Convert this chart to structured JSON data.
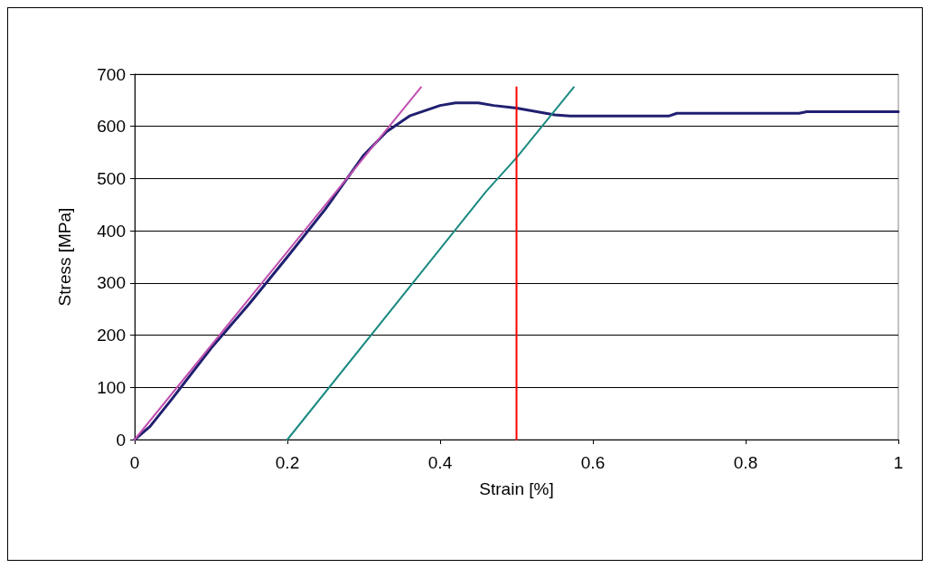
{
  "chart_data": {
    "type": "line",
    "xlabel": "Strain [%]",
    "ylabel": "Stress [MPa]",
    "xlim": [
      0,
      1
    ],
    "xticks": [
      0,
      0.2,
      0.4,
      0.6,
      0.8,
      1
    ],
    "ylim": [
      0,
      700
    ],
    "yticks": [
      0,
      100,
      200,
      300,
      400,
      500,
      600,
      700
    ],
    "grid": "y",
    "marker": "none",
    "line_style": "solid",
    "series": [
      {
        "color": "#201f70",
        "x": [
          0,
          0.02,
          0.05,
          0.1,
          0.15,
          0.2,
          0.25,
          0.3,
          0.33,
          0.36,
          0.38,
          0.4,
          0.42,
          0.45,
          0.47,
          0.5,
          0.52,
          0.55,
          0.57,
          0.7,
          0.71,
          0.87,
          0.88,
          1
        ],
        "values": [
          0,
          25,
          80,
          175,
          260,
          350,
          442,
          545,
          590,
          620,
          630,
          640,
          645,
          645,
          640,
          635,
          630,
          622,
          620,
          620,
          625,
          625,
          628,
          628
        ]
      },
      {
        "color": "#c050b0",
        "x": [
          0,
          0.375
        ],
        "values": [
          0,
          675
        ]
      },
      {
        "color": "#1a8a80",
        "x": [
          0.2,
          0.46,
          0.5,
          0.575
        ],
        "values": [
          0,
          475,
          540,
          675
        ]
      },
      {
        "color": "#ff0000",
        "x": [
          0.5,
          0.5
        ],
        "values": [
          0,
          675
        ]
      }
    ]
  }
}
